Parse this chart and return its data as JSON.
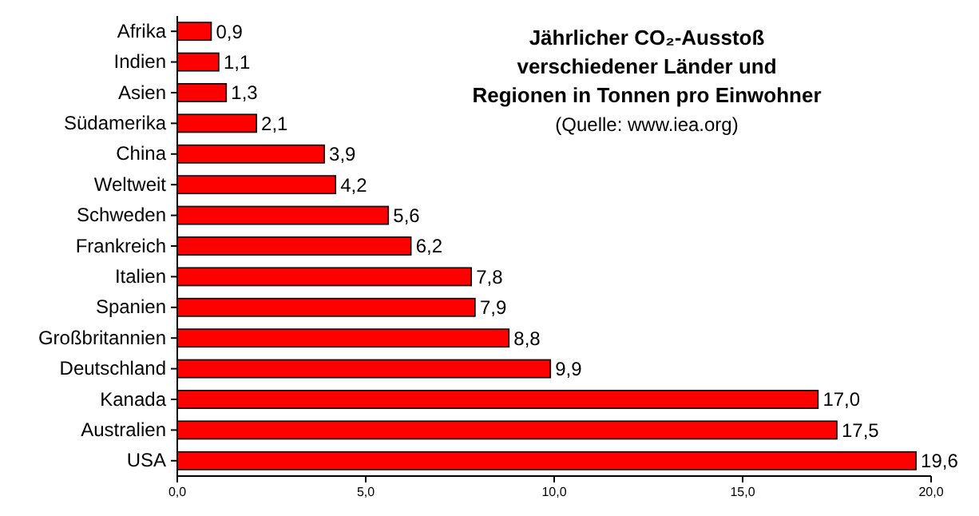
{
  "chart_data": {
    "type": "bar",
    "orientation": "horizontal",
    "title": "Jährlicher CO₂-Ausstoß verschiedener Länder und Regionen in Tonnen pro Einwohner",
    "annotations": [
      "(Quelle: www.iea.org)"
    ],
    "categories": [
      "Afrika",
      "Indien",
      "Asien",
      "Südamerika",
      "China",
      "Weltweit",
      "Schweden",
      "Frankreich",
      "Italien",
      "Spanien",
      "Großbritannien",
      "Deutschland",
      "Kanada",
      "Australien",
      "USA"
    ],
    "values": [
      0.9,
      1.1,
      1.3,
      2.1,
      3.9,
      4.2,
      5.6,
      6.2,
      7.8,
      7.9,
      8.8,
      9.9,
      17.0,
      17.5,
      19.6
    ],
    "value_labels": [
      "0,9",
      "1,1",
      "1,3",
      "2,1",
      "3,9",
      "4,2",
      "5,6",
      "6,2",
      "7,8",
      "7,9",
      "8,8",
      "9,9",
      "17,0",
      "17,5",
      "19,6"
    ],
    "color": "#ff0000",
    "xlim": [
      0,
      20
    ],
    "xticks": [
      {
        "value": 0,
        "label": "0,0"
      },
      {
        "value": 5,
        "label": "5,0"
      },
      {
        "value": 10,
        "label": "10,0"
      },
      {
        "value": 15,
        "label": "15,0"
      },
      {
        "value": 20,
        "label": "20,0"
      }
    ]
  }
}
